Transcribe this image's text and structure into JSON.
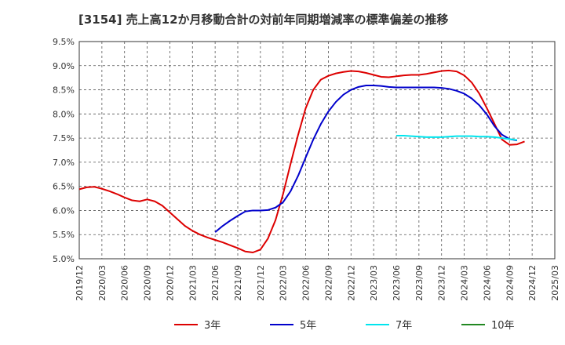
{
  "chart_data": {
    "type": "line",
    "title": "[3154]  売上高12か月移動合計の対前年同期増減率の標準偏差の推移",
    "xlabel": "",
    "ylabel": "",
    "ylim": [
      5.0,
      9.5
    ],
    "y_ticks": [
      "5.0%",
      "5.5%",
      "6.0%",
      "6.5%",
      "7.0%",
      "7.5%",
      "8.0%",
      "8.5%",
      "9.0%",
      "9.5%"
    ],
    "y_tick_values": [
      5.0,
      5.5,
      6.0,
      6.5,
      7.0,
      7.5,
      8.0,
      8.5,
      9.0,
      9.5
    ],
    "x_ticks": [
      "2019/12",
      "2020/03",
      "2020/06",
      "2020/09",
      "2020/12",
      "2021/03",
      "2021/06",
      "2021/09",
      "2021/12",
      "2022/03",
      "2022/06",
      "2022/09",
      "2022/12",
      "2023/03",
      "2023/06",
      "2023/09",
      "2023/12",
      "2024/03",
      "2024/06",
      "2024/09",
      "2024/12",
      "2025/03"
    ],
    "x_range_months": [
      0,
      63
    ],
    "grid": true,
    "legend_position": "bottom",
    "series": [
      {
        "name": "3年",
        "color": "#dd0000",
        "points": [
          [
            0,
            6.44
          ],
          [
            1,
            6.48
          ],
          [
            2,
            6.49
          ],
          [
            3,
            6.45
          ],
          [
            4,
            6.4
          ],
          [
            5,
            6.34
          ],
          [
            6,
            6.27
          ],
          [
            7,
            6.21
          ],
          [
            8,
            6.19
          ],
          [
            9,
            6.23
          ],
          [
            10,
            6.19
          ],
          [
            11,
            6.1
          ],
          [
            12,
            5.96
          ],
          [
            13,
            5.82
          ],
          [
            14,
            5.68
          ],
          [
            15,
            5.58
          ],
          [
            16,
            5.5
          ],
          [
            17,
            5.44
          ],
          [
            18,
            5.39
          ],
          [
            19,
            5.34
          ],
          [
            20,
            5.28
          ],
          [
            21,
            5.22
          ],
          [
            22,
            5.15
          ],
          [
            23,
            5.13
          ],
          [
            24,
            5.19
          ],
          [
            25,
            5.42
          ],
          [
            26,
            5.8
          ],
          [
            27,
            6.34
          ],
          [
            28,
            6.97
          ],
          [
            29,
            7.57
          ],
          [
            30,
            8.12
          ],
          [
            31,
            8.5
          ],
          [
            32,
            8.71
          ],
          [
            33,
            8.79
          ],
          [
            34,
            8.84
          ],
          [
            35,
            8.87
          ],
          [
            36,
            8.89
          ],
          [
            37,
            8.88
          ],
          [
            38,
            8.85
          ],
          [
            39,
            8.81
          ],
          [
            40,
            8.77
          ],
          [
            41,
            8.76
          ],
          [
            42,
            8.78
          ],
          [
            43,
            8.8
          ],
          [
            44,
            8.81
          ],
          [
            45,
            8.81
          ],
          [
            46,
            8.83
          ],
          [
            47,
            8.86
          ],
          [
            48,
            8.89
          ],
          [
            49,
            8.9
          ],
          [
            50,
            8.88
          ],
          [
            51,
            8.8
          ],
          [
            52,
            8.65
          ],
          [
            53,
            8.42
          ],
          [
            54,
            8.12
          ],
          [
            55,
            7.8
          ],
          [
            56,
            7.47
          ],
          [
            57,
            7.36
          ],
          [
            58,
            7.37
          ],
          [
            59,
            7.43
          ]
        ]
      },
      {
        "name": "5年",
        "color": "#0000cc",
        "points": [
          [
            18,
            5.55
          ],
          [
            19,
            5.68
          ],
          [
            20,
            5.79
          ],
          [
            21,
            5.89
          ],
          [
            22,
            5.98
          ],
          [
            23,
            6.0
          ],
          [
            24,
            6.0
          ],
          [
            25,
            6.01
          ],
          [
            26,
            6.06
          ],
          [
            27,
            6.17
          ],
          [
            28,
            6.4
          ],
          [
            29,
            6.72
          ],
          [
            30,
            7.1
          ],
          [
            31,
            7.47
          ],
          [
            32,
            7.79
          ],
          [
            33,
            8.05
          ],
          [
            34,
            8.25
          ],
          [
            35,
            8.4
          ],
          [
            36,
            8.5
          ],
          [
            37,
            8.56
          ],
          [
            38,
            8.59
          ],
          [
            39,
            8.59
          ],
          [
            40,
            8.58
          ],
          [
            41,
            8.56
          ],
          [
            42,
            8.55
          ],
          [
            43,
            8.55
          ],
          [
            44,
            8.55
          ],
          [
            45,
            8.55
          ],
          [
            46,
            8.55
          ],
          [
            47,
            8.55
          ],
          [
            48,
            8.54
          ],
          [
            49,
            8.52
          ],
          [
            50,
            8.48
          ],
          [
            51,
            8.42
          ],
          [
            52,
            8.32
          ],
          [
            53,
            8.18
          ],
          [
            54,
            7.99
          ],
          [
            55,
            7.75
          ],
          [
            56,
            7.57
          ],
          [
            57,
            7.48
          ],
          [
            58,
            7.45
          ]
        ]
      },
      {
        "name": "7年",
        "color": "#00e5ee",
        "points": [
          [
            42,
            7.55
          ],
          [
            43,
            7.55
          ],
          [
            44,
            7.54
          ],
          [
            45,
            7.53
          ],
          [
            46,
            7.52
          ],
          [
            47,
            7.52
          ],
          [
            48,
            7.52
          ],
          [
            49,
            7.53
          ],
          [
            50,
            7.54
          ],
          [
            51,
            7.54
          ],
          [
            52,
            7.54
          ],
          [
            53,
            7.53
          ],
          [
            54,
            7.53
          ],
          [
            55,
            7.52
          ],
          [
            56,
            7.5
          ],
          [
            57,
            7.48
          ],
          [
            58,
            7.46
          ]
        ]
      },
      {
        "name": "10年",
        "color": "#228822",
        "points": []
      }
    ]
  }
}
